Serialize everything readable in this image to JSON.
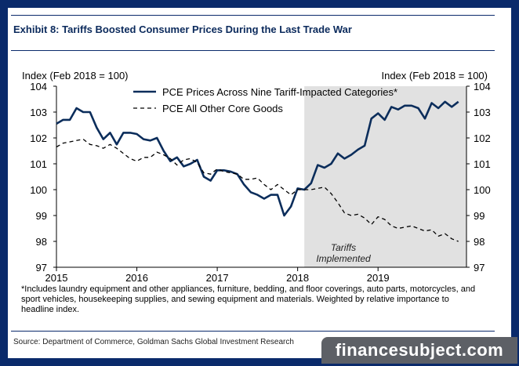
{
  "title": "Exhibit 8: Tariffs Boosted Consumer Prices During the Last Trade War",
  "footnote": "*Includes laundry equipment and other appliances, furniture, bedding, and floor coverings, auto parts, motorcycles, and sport vehicles, housekeeping supplies, and sewing equipment and materials. Weighted by relative importance to headline index.",
  "source": "Source: Department of Commerce, Goldman Sachs Global Investment Research",
  "watermark": "financesubject.com",
  "colors": {
    "series1": "#0b2d5b",
    "series2": "#000000",
    "shade": "#e1e1e1",
    "frame": "#0a2a6b"
  },
  "chart_data": {
    "type": "line",
    "title": "Exhibit 8: Tariffs Boosted Consumer Prices During the Last Trade War",
    "ylabel_left": "Index (Feb 2018 = 100)",
    "ylabel_right": "Index (Feb 2018 = 100)",
    "ylim": [
      97,
      104
    ],
    "yticks": [
      "97",
      "98",
      "99",
      "100",
      "101",
      "102",
      "103",
      "104"
    ],
    "xlim": [
      2015,
      2020.1
    ],
    "xticks": [
      "2015",
      "2016",
      "2017",
      "2018",
      "2019"
    ],
    "grid": false,
    "legend": "top-center",
    "shaded_region": {
      "from": 2018.083,
      "to": 2020.1,
      "label": [
        "Tariffs",
        "Implemented"
      ]
    },
    "series": [
      {
        "name": "PCE Prices Across Nine Tariff-Impacted Categories*",
        "style": "solid",
        "points": [
          [
            2015.0,
            102.55
          ],
          [
            2015.083,
            102.7
          ],
          [
            2015.167,
            102.7
          ],
          [
            2015.25,
            103.15
          ],
          [
            2015.333,
            103.0
          ],
          [
            2015.417,
            103.0
          ],
          [
            2015.5,
            102.4
          ],
          [
            2015.583,
            101.95
          ],
          [
            2015.667,
            102.2
          ],
          [
            2015.75,
            101.75
          ],
          [
            2015.833,
            102.2
          ],
          [
            2015.917,
            102.2
          ],
          [
            2016.0,
            102.15
          ],
          [
            2016.083,
            101.95
          ],
          [
            2016.167,
            101.9
          ],
          [
            2016.25,
            102.0
          ],
          [
            2016.333,
            101.5
          ],
          [
            2016.417,
            101.1
          ],
          [
            2016.5,
            101.25
          ],
          [
            2016.583,
            100.9
          ],
          [
            2016.667,
            101.0
          ],
          [
            2016.75,
            101.15
          ],
          [
            2016.833,
            100.5
          ],
          [
            2016.917,
            100.35
          ],
          [
            2017.0,
            100.75
          ],
          [
            2017.083,
            100.75
          ],
          [
            2017.167,
            100.7
          ],
          [
            2017.25,
            100.6
          ],
          [
            2017.333,
            100.2
          ],
          [
            2017.417,
            99.9
          ],
          [
            2017.5,
            99.8
          ],
          [
            2017.583,
            99.65
          ],
          [
            2017.667,
            99.8
          ],
          [
            2017.75,
            99.8
          ],
          [
            2017.833,
            99.0
          ],
          [
            2017.917,
            99.35
          ],
          [
            2018.0,
            100.05
          ],
          [
            2018.083,
            100.0
          ],
          [
            2018.167,
            100.25
          ],
          [
            2018.25,
            100.95
          ],
          [
            2018.333,
            100.85
          ],
          [
            2018.417,
            101.0
          ],
          [
            2018.5,
            101.4
          ],
          [
            2018.583,
            101.2
          ],
          [
            2018.667,
            101.35
          ],
          [
            2018.75,
            101.55
          ],
          [
            2018.833,
            101.7
          ],
          [
            2018.917,
            102.75
          ],
          [
            2019.0,
            102.95
          ],
          [
            2019.083,
            102.7
          ],
          [
            2019.167,
            103.2
          ],
          [
            2019.25,
            103.1
          ],
          [
            2019.333,
            103.25
          ],
          [
            2019.417,
            103.25
          ],
          [
            2019.5,
            103.15
          ],
          [
            2019.583,
            102.75
          ],
          [
            2019.667,
            103.35
          ],
          [
            2019.75,
            103.15
          ],
          [
            2019.833,
            103.4
          ],
          [
            2019.917,
            103.2
          ],
          [
            2020.0,
            103.4
          ]
        ]
      },
      {
        "name": "PCE All Other Core Goods",
        "style": "dashed",
        "points": [
          [
            2015.0,
            101.65
          ],
          [
            2015.083,
            101.8
          ],
          [
            2015.167,
            101.85
          ],
          [
            2015.25,
            101.9
          ],
          [
            2015.333,
            101.95
          ],
          [
            2015.417,
            101.75
          ],
          [
            2015.5,
            101.7
          ],
          [
            2015.583,
            101.6
          ],
          [
            2015.667,
            101.75
          ],
          [
            2015.75,
            101.6
          ],
          [
            2015.833,
            101.4
          ],
          [
            2015.917,
            101.2
          ],
          [
            2016.0,
            101.1
          ],
          [
            2016.083,
            101.25
          ],
          [
            2016.167,
            101.25
          ],
          [
            2016.25,
            101.45
          ],
          [
            2016.333,
            101.35
          ],
          [
            2016.417,
            101.2
          ],
          [
            2016.5,
            100.95
          ],
          [
            2016.583,
            101.15
          ],
          [
            2016.667,
            101.2
          ],
          [
            2016.75,
            101.05
          ],
          [
            2016.833,
            100.65
          ],
          [
            2016.917,
            100.6
          ],
          [
            2017.0,
            100.8
          ],
          [
            2017.083,
            100.7
          ],
          [
            2017.167,
            100.65
          ],
          [
            2017.25,
            100.6
          ],
          [
            2017.333,
            100.4
          ],
          [
            2017.417,
            100.4
          ],
          [
            2017.5,
            100.45
          ],
          [
            2017.583,
            100.2
          ],
          [
            2017.667,
            100.0
          ],
          [
            2017.75,
            100.2
          ],
          [
            2017.833,
            100.0
          ],
          [
            2017.917,
            99.8
          ],
          [
            2018.0,
            100.0
          ],
          [
            2018.083,
            100.0
          ],
          [
            2018.167,
            100.0
          ],
          [
            2018.25,
            100.05
          ],
          [
            2018.333,
            100.1
          ],
          [
            2018.417,
            99.85
          ],
          [
            2018.5,
            99.5
          ],
          [
            2018.583,
            99.1
          ],
          [
            2018.667,
            99.0
          ],
          [
            2018.75,
            99.05
          ],
          [
            2018.833,
            98.9
          ],
          [
            2018.917,
            98.65
          ],
          [
            2019.0,
            98.95
          ],
          [
            2019.083,
            98.85
          ],
          [
            2019.167,
            98.6
          ],
          [
            2019.25,
            98.5
          ],
          [
            2019.333,
            98.55
          ],
          [
            2019.417,
            98.6
          ],
          [
            2019.5,
            98.5
          ],
          [
            2019.583,
            98.4
          ],
          [
            2019.667,
            98.45
          ],
          [
            2019.75,
            98.2
          ],
          [
            2019.833,
            98.3
          ],
          [
            2019.917,
            98.1
          ],
          [
            2020.0,
            98.0
          ]
        ]
      }
    ]
  }
}
